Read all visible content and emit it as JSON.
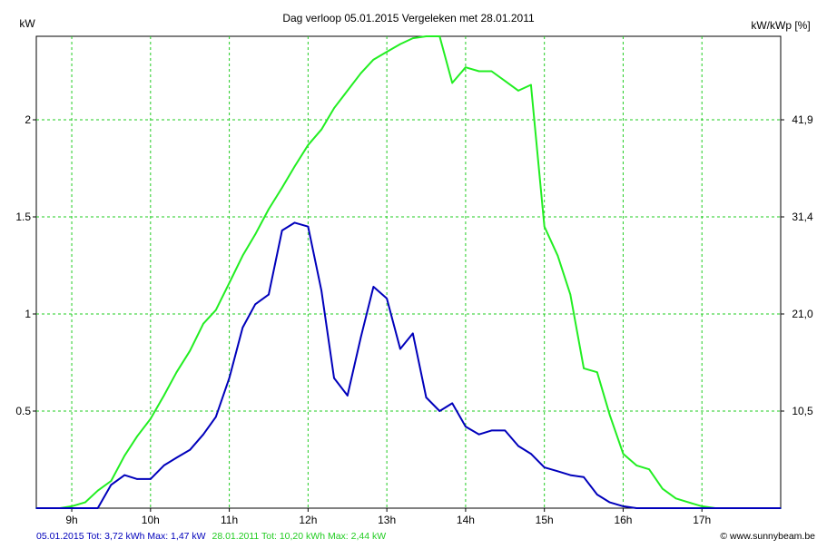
{
  "chart_data": {
    "type": "line",
    "title": "Dag  verloop 05.01.2015   Vergeleken met 28.01.2011",
    "ylabel_left": "kW",
    "ylabel_right": "kW/kWp [%]",
    "xlim": [
      8.55,
      18.0
    ],
    "ylim": [
      0,
      2.43
    ],
    "x_ticks": [
      9,
      10,
      11,
      12,
      13,
      14,
      15,
      16,
      17
    ],
    "x_tick_labels": [
      "9h",
      "10h",
      "11h",
      "12h",
      "13h",
      "14h",
      "15h",
      "16h",
      "17h"
    ],
    "y_ticks": [
      0.5,
      1,
      1.5,
      2
    ],
    "y_tick_labels": [
      "0.5",
      "1",
      "1.5",
      "2"
    ],
    "y2_tick_labels": [
      "10,5",
      "21,0",
      "31,4",
      "41,9"
    ],
    "grid": true,
    "grid_color": "#22cc22",
    "series": [
      {
        "name": "28.01.2011",
        "color": "#22ee22",
        "x": [
          8.55,
          8.85,
          9.0,
          9.17,
          9.33,
          9.5,
          9.67,
          9.83,
          10.0,
          10.17,
          10.33,
          10.5,
          10.67,
          10.83,
          11.0,
          11.17,
          11.33,
          11.5,
          11.67,
          11.83,
          12.0,
          12.17,
          12.33,
          12.5,
          12.67,
          12.83,
          13.0,
          13.17,
          13.33,
          13.5,
          13.67,
          13.83,
          14.0,
          14.17,
          14.33,
          14.5,
          14.67,
          14.83,
          15.0,
          15.17,
          15.33,
          15.5,
          15.67,
          15.83,
          16.0,
          16.17,
          16.33,
          16.5,
          16.67,
          16.83,
          17.0,
          17.17,
          17.33,
          17.5,
          17.67,
          17.83,
          18.0
        ],
        "y": [
          0.0,
          0.0,
          0.01,
          0.03,
          0.09,
          0.14,
          0.27,
          0.37,
          0.46,
          0.58,
          0.7,
          0.81,
          0.95,
          1.02,
          1.16,
          1.3,
          1.41,
          1.54,
          1.65,
          1.76,
          1.87,
          1.95,
          2.06,
          2.15,
          2.24,
          2.31,
          2.35,
          2.39,
          2.42,
          2.43,
          2.43,
          2.19,
          2.27,
          2.25,
          2.25,
          2.2,
          2.15,
          2.18,
          1.45,
          1.3,
          1.1,
          0.72,
          0.7,
          0.48,
          0.28,
          0.22,
          0.2,
          0.1,
          0.05,
          0.03,
          0.01,
          0.0,
          0.0,
          0.0,
          0.0,
          0.0,
          0.0
        ]
      },
      {
        "name": "05.01.2015",
        "color": "#0000bb",
        "x": [
          8.55,
          9.0,
          9.17,
          9.33,
          9.5,
          9.67,
          9.83,
          10.0,
          10.17,
          10.33,
          10.5,
          10.67,
          10.83,
          11.0,
          11.17,
          11.33,
          11.5,
          11.67,
          11.83,
          12.0,
          12.17,
          12.33,
          12.5,
          12.67,
          12.83,
          13.0,
          13.17,
          13.33,
          13.5,
          13.67,
          13.83,
          14.0,
          14.17,
          14.33,
          14.5,
          14.67,
          14.83,
          15.0,
          15.17,
          15.33,
          15.5,
          15.67,
          15.83,
          16.0,
          16.17,
          16.33,
          16.5,
          16.67,
          16.83,
          17.0,
          17.17,
          17.33,
          17.5,
          17.67,
          17.83,
          18.0
        ],
        "y": [
          0.0,
          0.0,
          0.0,
          0.0,
          0.12,
          0.17,
          0.15,
          0.15,
          0.22,
          0.26,
          0.3,
          0.38,
          0.47,
          0.67,
          0.93,
          1.05,
          1.1,
          1.43,
          1.47,
          1.45,
          1.12,
          0.67,
          0.58,
          0.88,
          1.14,
          1.08,
          0.82,
          0.9,
          0.57,
          0.5,
          0.54,
          0.42,
          0.38,
          0.4,
          0.4,
          0.32,
          0.28,
          0.21,
          0.19,
          0.17,
          0.16,
          0.07,
          0.03,
          0.01,
          0.0,
          0.0,
          0.0,
          0.0,
          0.0,
          0.0,
          0.0,
          0.0,
          0.0,
          0.0,
          0.0,
          0.0
        ]
      }
    ]
  },
  "footer": {
    "legend_2015": "05.01.2015 Tot: 3,72 kWh Max: 1,47 kW",
    "legend_2011": "28.01.2011 Tot: 10,20 kWh Max: 2,44 kW",
    "credit": "© www.sunnybeam.be"
  }
}
